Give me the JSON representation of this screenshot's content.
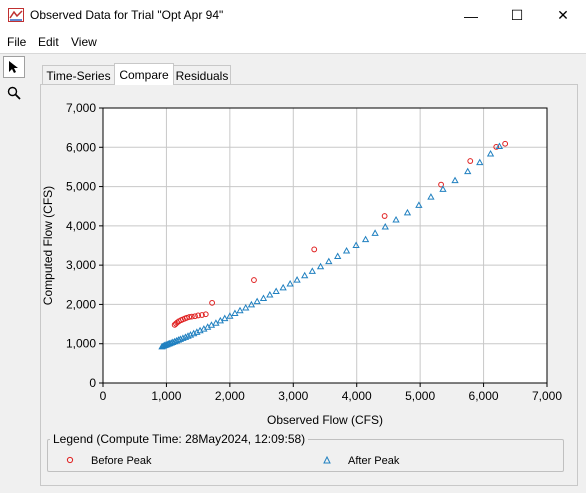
{
  "window": {
    "title": "Observed Data for Trial \"Opt Apr 94\"",
    "minimize_glyph": "—",
    "maximize_glyph": "☐",
    "close_glyph": "✕"
  },
  "menu": [
    "File",
    "Edit",
    "View"
  ],
  "tools": [
    {
      "icon": "pointer-arrow-icon",
      "selected": true
    },
    {
      "icon": "zoom-magnifier-icon",
      "selected": false
    }
  ],
  "tabs": [
    {
      "label": "Time-Series",
      "active": false
    },
    {
      "label": "Compare",
      "active": true
    },
    {
      "label": "Residuals",
      "active": false
    }
  ],
  "legend": {
    "title": "Legend (Compute Time: 28May2024, 12:09:58)"
  },
  "chart_data": {
    "type": "scatter",
    "xlabel": "Observed Flow (CFS)",
    "ylabel": "Computed Flow (CFS)",
    "xlim": [
      0,
      7000
    ],
    "ylim": [
      0,
      7000
    ],
    "x_ticks": [
      "0",
      "1,000",
      "2,000",
      "3,000",
      "4,000",
      "5,000",
      "6,000",
      "7,000"
    ],
    "y_ticks": [
      "0",
      "1,000",
      "2,000",
      "3,000",
      "4,000",
      "5,000",
      "6,000",
      "7,000"
    ],
    "grid": true,
    "legend_position": "bottom",
    "series": [
      {
        "name": "Before Peak",
        "marker": "circle",
        "color": "#e02020",
        "points": [
          [
            1130,
            1480
          ],
          [
            1150,
            1510
          ],
          [
            1170,
            1540
          ],
          [
            1195,
            1570
          ],
          [
            1230,
            1600
          ],
          [
            1260,
            1620
          ],
          [
            1290,
            1640
          ],
          [
            1320,
            1660
          ],
          [
            1360,
            1680
          ],
          [
            1400,
            1690
          ],
          [
            1450,
            1700
          ],
          [
            1500,
            1720
          ],
          [
            1560,
            1730
          ],
          [
            1620,
            1750
          ],
          [
            1720,
            2040
          ],
          [
            2380,
            2620
          ],
          [
            3330,
            3400
          ],
          [
            4440,
            4250
          ],
          [
            5330,
            5050
          ],
          [
            5790,
            5650
          ],
          [
            6200,
            6010
          ],
          [
            6340,
            6090
          ]
        ]
      },
      {
        "name": "After Peak",
        "marker": "triangle",
        "color": "#2080c0",
        "points": [
          [
            930,
            920
          ],
          [
            950,
            935
          ],
          [
            970,
            950
          ],
          [
            990,
            960
          ],
          [
            1010,
            975
          ],
          [
            1030,
            990
          ],
          [
            1050,
            1000
          ],
          [
            1075,
            1015
          ],
          [
            1100,
            1030
          ],
          [
            1130,
            1050
          ],
          [
            1160,
            1070
          ],
          [
            1190,
            1090
          ],
          [
            1220,
            1110
          ],
          [
            1260,
            1135
          ],
          [
            1300,
            1160
          ],
          [
            1340,
            1190
          ],
          [
            1380,
            1220
          ],
          [
            1430,
            1255
          ],
          [
            1480,
            1290
          ],
          [
            1530,
            1330
          ],
          [
            1590,
            1370
          ],
          [
            1650,
            1420
          ],
          [
            1710,
            1470
          ],
          [
            1780,
            1520
          ],
          [
            1850,
            1580
          ],
          [
            1920,
            1640
          ],
          [
            2000,
            1700
          ],
          [
            2080,
            1770
          ],
          [
            2160,
            1840
          ],
          [
            2250,
            1910
          ],
          [
            2340,
            1990
          ],
          [
            2430,
            2070
          ],
          [
            2530,
            2150
          ],
          [
            2630,
            2240
          ],
          [
            2730,
            2330
          ],
          [
            2840,
            2420
          ],
          [
            2950,
            2520
          ],
          [
            3060,
            2620
          ],
          [
            3180,
            2730
          ],
          [
            3300,
            2840
          ],
          [
            3430,
            2960
          ],
          [
            3560,
            3090
          ],
          [
            3700,
            3220
          ],
          [
            3840,
            3360
          ],
          [
            3990,
            3500
          ],
          [
            4140,
            3650
          ],
          [
            4290,
            3810
          ],
          [
            4450,
            3970
          ],
          [
            4620,
            4150
          ],
          [
            4800,
            4330
          ],
          [
            4980,
            4520
          ],
          [
            5170,
            4730
          ],
          [
            5360,
            4930
          ],
          [
            5550,
            5150
          ],
          [
            5750,
            5380
          ],
          [
            5940,
            5610
          ],
          [
            6110,
            5830
          ],
          [
            6250,
            6020
          ]
        ]
      }
    ]
  }
}
